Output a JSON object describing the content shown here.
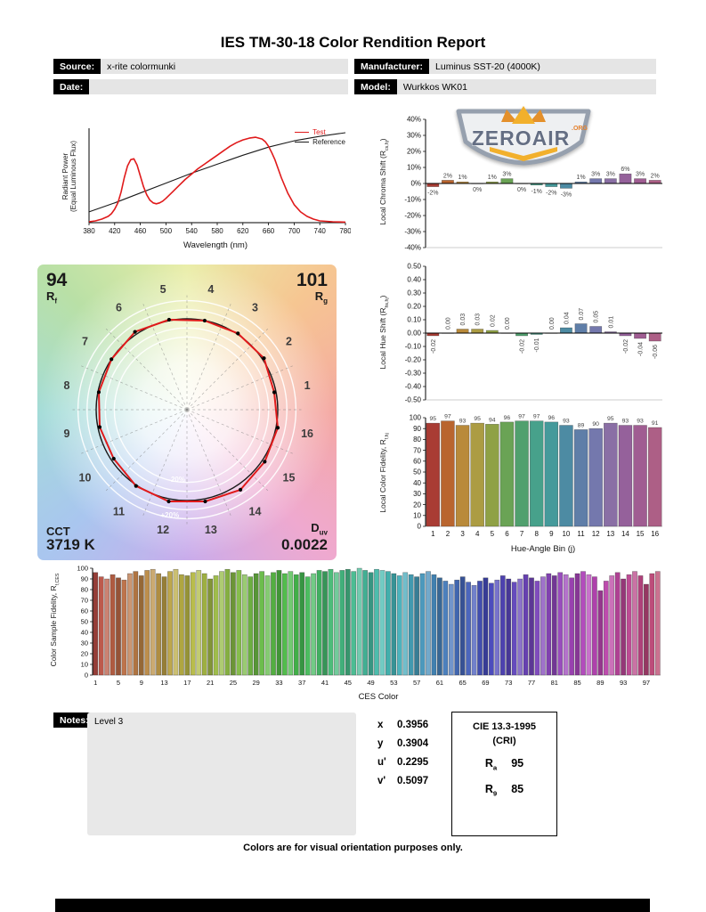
{
  "title": "IES TM-30-18 Color Rendition Report",
  "header": {
    "source_label": "Source:",
    "source_value": "x-rite colormunki",
    "date_label": "Date:",
    "date_value": "",
    "manufacturer_label": "Manufacturer:",
    "manufacturer_value": "Luminus SST-20 (4000K)",
    "model_label": "Model:",
    "model_value": "Wurkkos WK01"
  },
  "logo": {
    "name": "ZEROAIR",
    "org": ".ORG",
    "colors": {
      "shield": "#8f99a8",
      "text": "#59647a",
      "gold": "#f2ab1d",
      "orange": "#e2761b"
    }
  },
  "spd": {
    "ylabel_line1": "Radiant Power",
    "ylabel_line2": "(Equal Luminous Flux)",
    "xlabel": "Wavelength (nm)",
    "legend": [
      {
        "label": "Test",
        "color": "#e01a1b"
      },
      {
        "label": "Reference",
        "color": "#1a1a1a"
      }
    ]
  },
  "charts": {
    "chroma": {
      "pre": "Local Chroma Shift (R",
      "sub": "cs,hj",
      "post": ")"
    },
    "hue": {
      "pre": "Local Hue Shift (R",
      "sub": "hs,hj",
      "post": ")"
    },
    "fid16": {
      "pre": "Local Color Fidelity, R",
      "sub": "f,hj",
      "post": "",
      "xlabel": "Hue-Angle Bin (j)"
    },
    "ces": {
      "pre": "Color Sample Fidelity, R",
      "sub": "f,CES",
      "post": "",
      "xlabel": "CES Color"
    }
  },
  "cvg": {
    "rf_value": "94",
    "rf_pre": "R",
    "rf_sub": "f",
    "rg_value": "101",
    "rg_pre": "R",
    "rg_sub": "g",
    "cct_label": "CCT",
    "cct_value": "3719 K",
    "duv_pre": "D",
    "duv_sub": "uv",
    "duv_value": "0.0022",
    "ring_plus": "+20%",
    "ring_minus": "-20%"
  },
  "hue_bin_colors": [
    "#a93c34",
    "#b9652f",
    "#b98a3a",
    "#ac9c43",
    "#8fa145",
    "#6aa355",
    "#50a06e",
    "#47a18b",
    "#459a9b",
    "#4d8ba3",
    "#5f7ea8",
    "#7478ad",
    "#8a6fa5",
    "#95619b",
    "#a05d92",
    "#ad5f86"
  ],
  "chart_data": [
    {
      "id": "spd",
      "type": "line",
      "xlabel": "Wavelength (nm)",
      "ylabel": "Radiant Power (Equal Luminous Flux)",
      "xlim": [
        380,
        780
      ],
      "ylim": [
        0,
        1.05
      ],
      "xticks": [
        380,
        420,
        460,
        500,
        540,
        580,
        620,
        660,
        700,
        740,
        780
      ],
      "series": [
        {
          "name": "Test",
          "color": "#e01a1b",
          "x": [
            380,
            390,
            400,
            410,
            415,
            420,
            425,
            430,
            435,
            440,
            445,
            450,
            455,
            460,
            465,
            470,
            475,
            480,
            485,
            490,
            495,
            500,
            510,
            520,
            530,
            540,
            550,
            560,
            570,
            580,
            590,
            600,
            610,
            620,
            630,
            640,
            650,
            655,
            660,
            665,
            670,
            675,
            680,
            690,
            700,
            710,
            720,
            730,
            740,
            750,
            760,
            770,
            780
          ],
          "y": [
            0.01,
            0.02,
            0.04,
            0.07,
            0.1,
            0.15,
            0.22,
            0.34,
            0.5,
            0.63,
            0.7,
            0.71,
            0.64,
            0.52,
            0.4,
            0.31,
            0.25,
            0.22,
            0.21,
            0.22,
            0.24,
            0.27,
            0.34,
            0.41,
            0.48,
            0.54,
            0.6,
            0.65,
            0.7,
            0.75,
            0.8,
            0.85,
            0.89,
            0.92,
            0.94,
            0.95,
            0.93,
            0.9,
            0.85,
            0.78,
            0.7,
            0.6,
            0.5,
            0.33,
            0.2,
            0.12,
            0.07,
            0.04,
            0.02,
            0.015,
            0.01,
            0.008,
            0.006
          ]
        },
        {
          "name": "Reference",
          "color": "#1a1a1a",
          "x": [
            380,
            420,
            460,
            500,
            540,
            580,
            620,
            660,
            700,
            740,
            780
          ],
          "y": [
            0.12,
            0.22,
            0.33,
            0.44,
            0.55,
            0.65,
            0.75,
            0.84,
            0.91,
            0.96,
            1.0
          ]
        }
      ]
    },
    {
      "id": "chroma",
      "type": "bar",
      "ylabel": "Local Chroma Shift (Rcs,hj)",
      "unit": "%",
      "ylim": [
        -40,
        40
      ],
      "ytick": 10,
      "categories": [
        1,
        2,
        3,
        4,
        5,
        6,
        7,
        8,
        9,
        10,
        11,
        12,
        13,
        14,
        15,
        16
      ],
      "values": [
        -2,
        2,
        1,
        0,
        1,
        3,
        0,
        -1,
        -2,
        -3,
        1,
        3,
        3,
        6,
        3,
        2
      ]
    },
    {
      "id": "hue",
      "type": "bar",
      "ylabel": "Local Hue Shift (Rhs,hj)",
      "ylim": [
        -0.5,
        0.5
      ],
      "ytick": 0.1,
      "categories": [
        1,
        2,
        3,
        4,
        5,
        6,
        7,
        8,
        9,
        10,
        11,
        12,
        13,
        14,
        15,
        16
      ],
      "values": [
        -0.02,
        0.0,
        0.03,
        0.03,
        0.02,
        0.0,
        -0.02,
        -0.01,
        0.0,
        0.04,
        0.07,
        0.05,
        0.01,
        -0.02,
        -0.04,
        -0.06
      ]
    },
    {
      "id": "fid16",
      "type": "bar",
      "ylabel": "Local Color Fidelity, Rf,hj",
      "xlabel": "Hue-Angle Bin (j)",
      "ylim": [
        0,
        100
      ],
      "ytick": 10,
      "categories": [
        1,
        2,
        3,
        4,
        5,
        6,
        7,
        8,
        9,
        10,
        11,
        12,
        13,
        14,
        15,
        16
      ],
      "values": [
        95,
        97,
        93,
        95,
        94,
        96,
        97,
        97,
        96,
        93,
        89,
        90,
        95,
        93,
        93,
        91
      ]
    },
    {
      "id": "ces",
      "type": "bar",
      "ylabel": "Color Sample Fidelity, Rf,CES",
      "xlabel": "CES Color",
      "ylim": [
        0,
        100
      ],
      "ytick": 10,
      "xtick_labels_every": 4,
      "values": [
        96,
        92,
        90,
        94,
        91,
        89,
        95,
        97,
        93,
        98,
        99,
        95,
        92,
        97,
        99,
        94,
        93,
        96,
        98,
        95,
        90,
        93,
        97,
        99,
        96,
        98,
        94,
        92,
        95,
        97,
        93,
        96,
        98,
        95,
        97,
        94,
        96,
        92,
        95,
        98,
        97,
        99,
        96,
        98,
        99,
        97,
        100,
        98,
        96,
        99,
        98,
        97,
        95,
        93,
        96,
        94,
        92,
        95,
        97,
        94,
        91,
        88,
        85,
        89,
        92,
        87,
        84,
        88,
        91,
        86,
        89,
        93,
        90,
        87,
        90,
        94,
        91,
        88,
        92,
        95,
        93,
        96,
        94,
        91,
        95,
        97,
        94,
        92,
        79,
        88,
        93,
        96,
        90,
        94,
        97,
        93,
        85,
        95,
        97
      ]
    },
    {
      "id": "cvg",
      "type": "vector",
      "rf": 94,
      "rg": 101,
      "cct_k": 3719,
      "duv": 0.0022,
      "bins": 16,
      "rings_pct": [
        80,
        90,
        100,
        110,
        120
      ]
    }
  ],
  "notes": {
    "label": "Notes:",
    "content": "Level 3"
  },
  "chromaticity": {
    "rows": [
      {
        "label": "x",
        "value": "0.3956"
      },
      {
        "label": "y",
        "value": "0.3904"
      },
      {
        "label": "u'",
        "value": "0.2295"
      },
      {
        "label": "v'",
        "value": "0.5097"
      }
    ]
  },
  "cri_box": {
    "line1": "CIE 13.3-1995",
    "line2": "(CRI)",
    "rows": [
      {
        "pre": "R",
        "sub": "a",
        "value": "95"
      },
      {
        "pre": "R",
        "sub": "9",
        "value": "85"
      }
    ]
  },
  "footer": "Colors are for visual orientation purposes only."
}
